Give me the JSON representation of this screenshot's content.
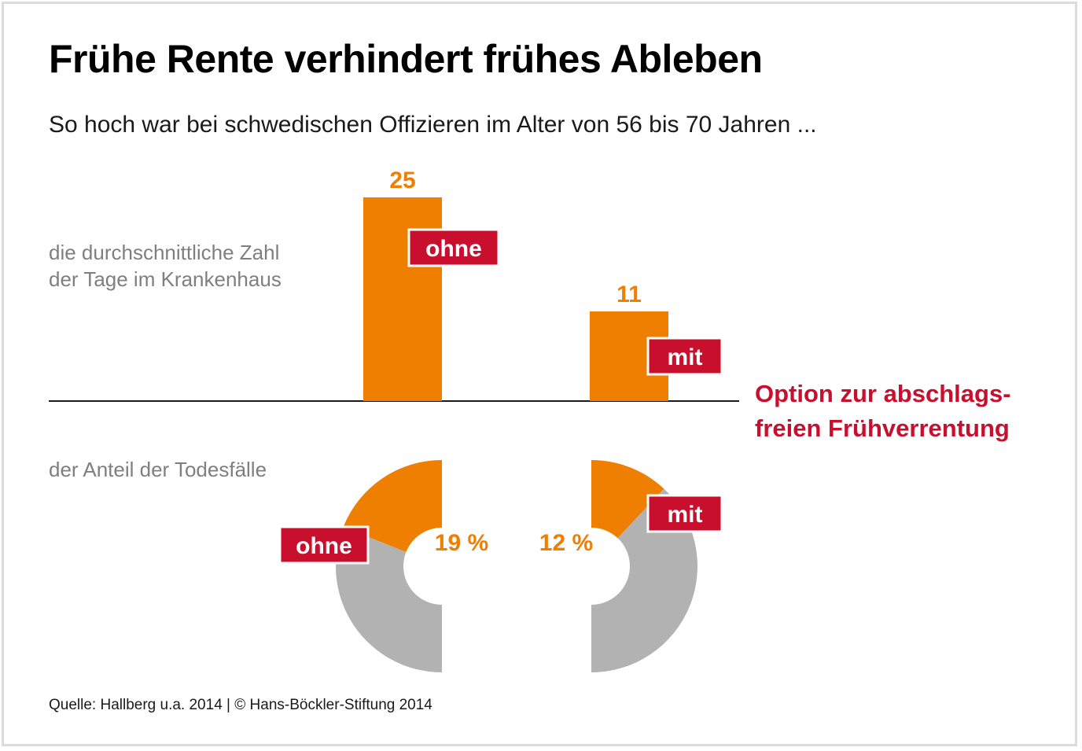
{
  "title": "Frühe Rente verhindert frühes Ableben",
  "subtitle": "So hoch war bei schwedischen Offizieren im Alter von 56 bis 70 Jahren ...",
  "legend_title_line1": "Option zur abschlags-",
  "legend_title_line2": "freien Frühverrentung",
  "source": "Quelle: Hallberg u.a. 2014 | © Hans-Böckler-Stiftung 2014",
  "colors": {
    "orange": "#ee7f00",
    "grey": "#b2b2b2",
    "red": "#c8102e",
    "label_grey": "#7f7f7f"
  },
  "chart_data": [
    {
      "type": "bar",
      "label_line1": "die durchschnittliche Zahl",
      "label_line2": "der Tage im Krankenhaus",
      "categories": [
        "ohne",
        "mit"
      ],
      "values": [
        25,
        11
      ],
      "value_labels": [
        "25",
        "11"
      ]
    },
    {
      "type": "pie",
      "label": "der Anteil der Todesfälle",
      "slices": [
        {
          "category": "ohne",
          "value": 19,
          "value_label": "19 %"
        },
        {
          "category": "mit",
          "value": 12,
          "value_label": "12 %"
        }
      ]
    }
  ]
}
